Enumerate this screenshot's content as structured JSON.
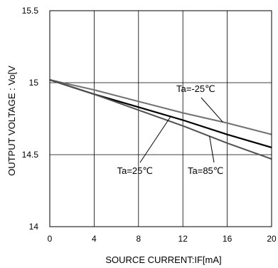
{
  "chart_data": {
    "type": "line",
    "title": "",
    "xlabel": "SOURCE CURRENT:IF[mA]",
    "ylabel": "OUTPUT VOLTAGE : Vo[V",
    "xlim": [
      0,
      20
    ],
    "ylim": [
      14,
      15.5
    ],
    "x_ticks": [
      "0",
      "4",
      "8",
      "12",
      "16",
      "20"
    ],
    "y_ticks": [
      "14",
      "14.5",
      "15",
      "15.5"
    ],
    "grid": true,
    "legend": "none",
    "series": [
      {
        "name": "Ta=-25℃",
        "color": "#707070",
        "x": [
          0,
          4,
          8,
          12,
          16,
          20
        ],
        "y": [
          15.02,
          14.95,
          14.87,
          14.79,
          14.72,
          14.64
        ]
      },
      {
        "name": "Ta=25℃",
        "color": "#000000",
        "x": [
          0,
          4,
          8,
          12,
          16,
          20
        ],
        "y": [
          15.02,
          14.92,
          14.83,
          14.74,
          14.64,
          14.55
        ]
      },
      {
        "name": "Ta=85℃",
        "color": "#505050",
        "x": [
          0,
          4,
          8,
          12,
          16,
          20
        ],
        "y": [
          15.02,
          14.92,
          14.81,
          14.7,
          14.58,
          14.47
        ]
      }
    ],
    "annotations": [
      {
        "text": "Ta=-25℃",
        "series": 0
      },
      {
        "text": "Ta=25℃",
        "series": 1
      },
      {
        "text": "Ta=85℃",
        "series": 2
      }
    ]
  }
}
